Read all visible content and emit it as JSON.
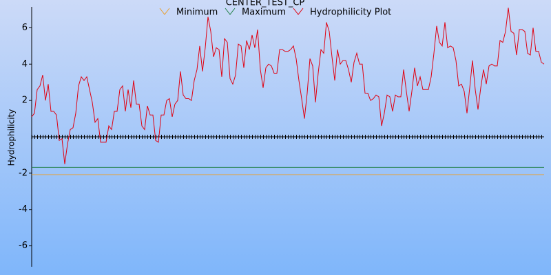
{
  "chart_data": {
    "type": "line",
    "title": "CENTER_TEST_CP",
    "ylabel": "Hydrophilicity",
    "ylim": [
      -7.15,
      7.15
    ],
    "yticks": [
      -6,
      -4,
      -2,
      2,
      4,
      6
    ],
    "series": [
      {
        "name": "Minimum",
        "color": "#e8a030",
        "value": -2.08
      },
      {
        "name": "Maximum",
        "color": "#208048",
        "value": -1.68
      },
      {
        "name": "Hydrophilicity Plot",
        "color": "#e00010",
        "values": [
          1.1,
          1.3,
          2.6,
          2.8,
          3.4,
          2.0,
          2.9,
          1.4,
          1.4,
          1.2,
          -0.2,
          -0.1,
          -1.5,
          -0.4,
          0.4,
          0.5,
          1.3,
          2.8,
          3.3,
          3.1,
          3.3,
          2.6,
          1.9,
          0.8,
          1.0,
          -0.3,
          -0.3,
          -0.3,
          0.6,
          0.4,
          1.4,
          1.4,
          2.6,
          2.8,
          1.4,
          2.6,
          1.6,
          3.1,
          1.8,
          1.8,
          0.6,
          0.4,
          1.7,
          1.2,
          1.2,
          -0.2,
          -0.3,
          1.2,
          1.2,
          2.0,
          2.1,
          1.1,
          1.8,
          2.0,
          3.6,
          2.3,
          2.1,
          2.1,
          2.0,
          3.1,
          3.7,
          5.0,
          3.6,
          4.9,
          6.6,
          5.8,
          4.4,
          4.9,
          4.8,
          3.3,
          5.4,
          5.2,
          3.2,
          2.9,
          3.4,
          5.1,
          5.0,
          3.8,
          5.3,
          4.8,
          5.6,
          4.9,
          5.9,
          3.7,
          2.7,
          3.8,
          4.0,
          3.9,
          3.5,
          3.5,
          4.8,
          4.8,
          4.7,
          4.7,
          4.8,
          5.0,
          4.3,
          3.1,
          2.1,
          1.0,
          2.4,
          4.3,
          3.9,
          1.9,
          3.5,
          4.8,
          4.6,
          6.3,
          5.8,
          4.4,
          3.1,
          4.8,
          4.0,
          4.2,
          4.2,
          3.7,
          3.0,
          4.1,
          4.6,
          4.0,
          4.0,
          2.4,
          2.4,
          2.0,
          2.1,
          2.3,
          2.2,
          0.6,
          1.3,
          2.3,
          2.2,
          1.4,
          2.3,
          2.2,
          2.2,
          3.7,
          2.5,
          1.4,
          2.5,
          3.8,
          2.8,
          3.3,
          2.6,
          2.6,
          2.6,
          3.3,
          4.6,
          6.1,
          5.2,
          5.0,
          6.3,
          4.9,
          5.0,
          4.9,
          4.2,
          2.8,
          2.9,
          2.5,
          1.3,
          2.7,
          4.2,
          2.6,
          1.5,
          2.7,
          3.7,
          2.9,
          3.9,
          4.0,
          3.9,
          3.9,
          5.3,
          5.2,
          5.8,
          7.1,
          5.8,
          5.7,
          4.5,
          5.9,
          5.9,
          5.8,
          4.6,
          4.5,
          6.0,
          4.7,
          4.7,
          4.1,
          4.0
        ]
      }
    ]
  }
}
